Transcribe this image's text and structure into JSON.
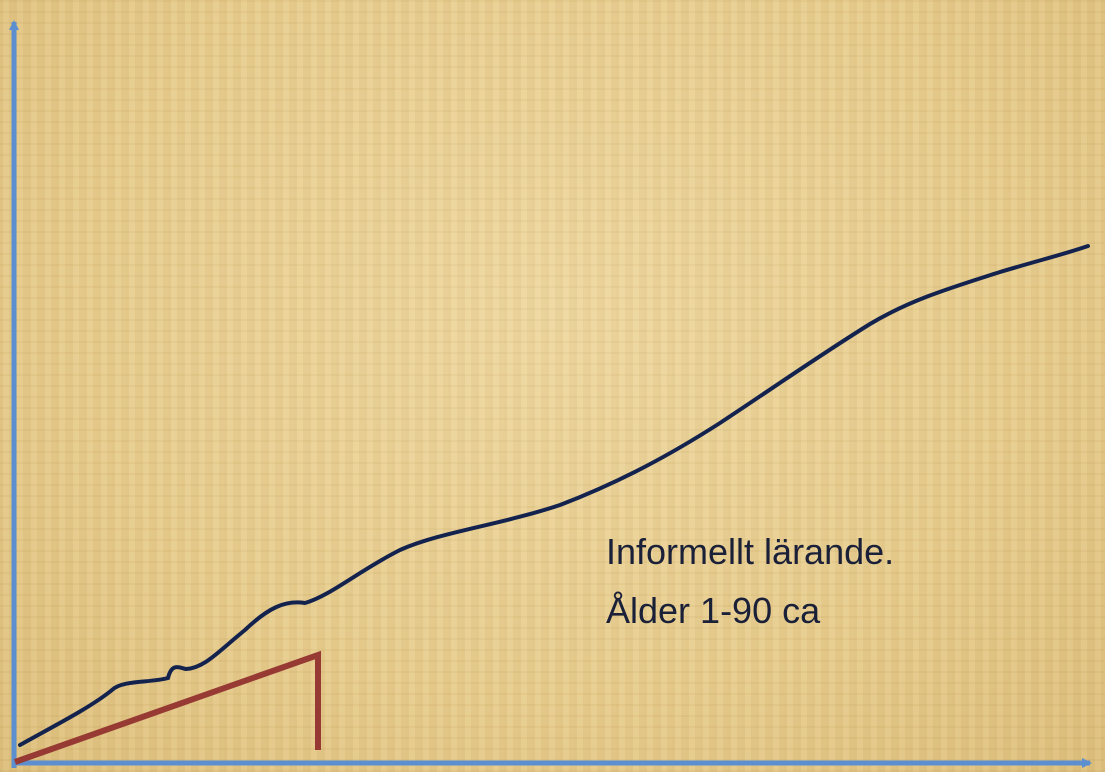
{
  "label": {
    "lines": [
      "Informellt lärande.",
      "Ålder 1-90 ca"
    ]
  }
}
